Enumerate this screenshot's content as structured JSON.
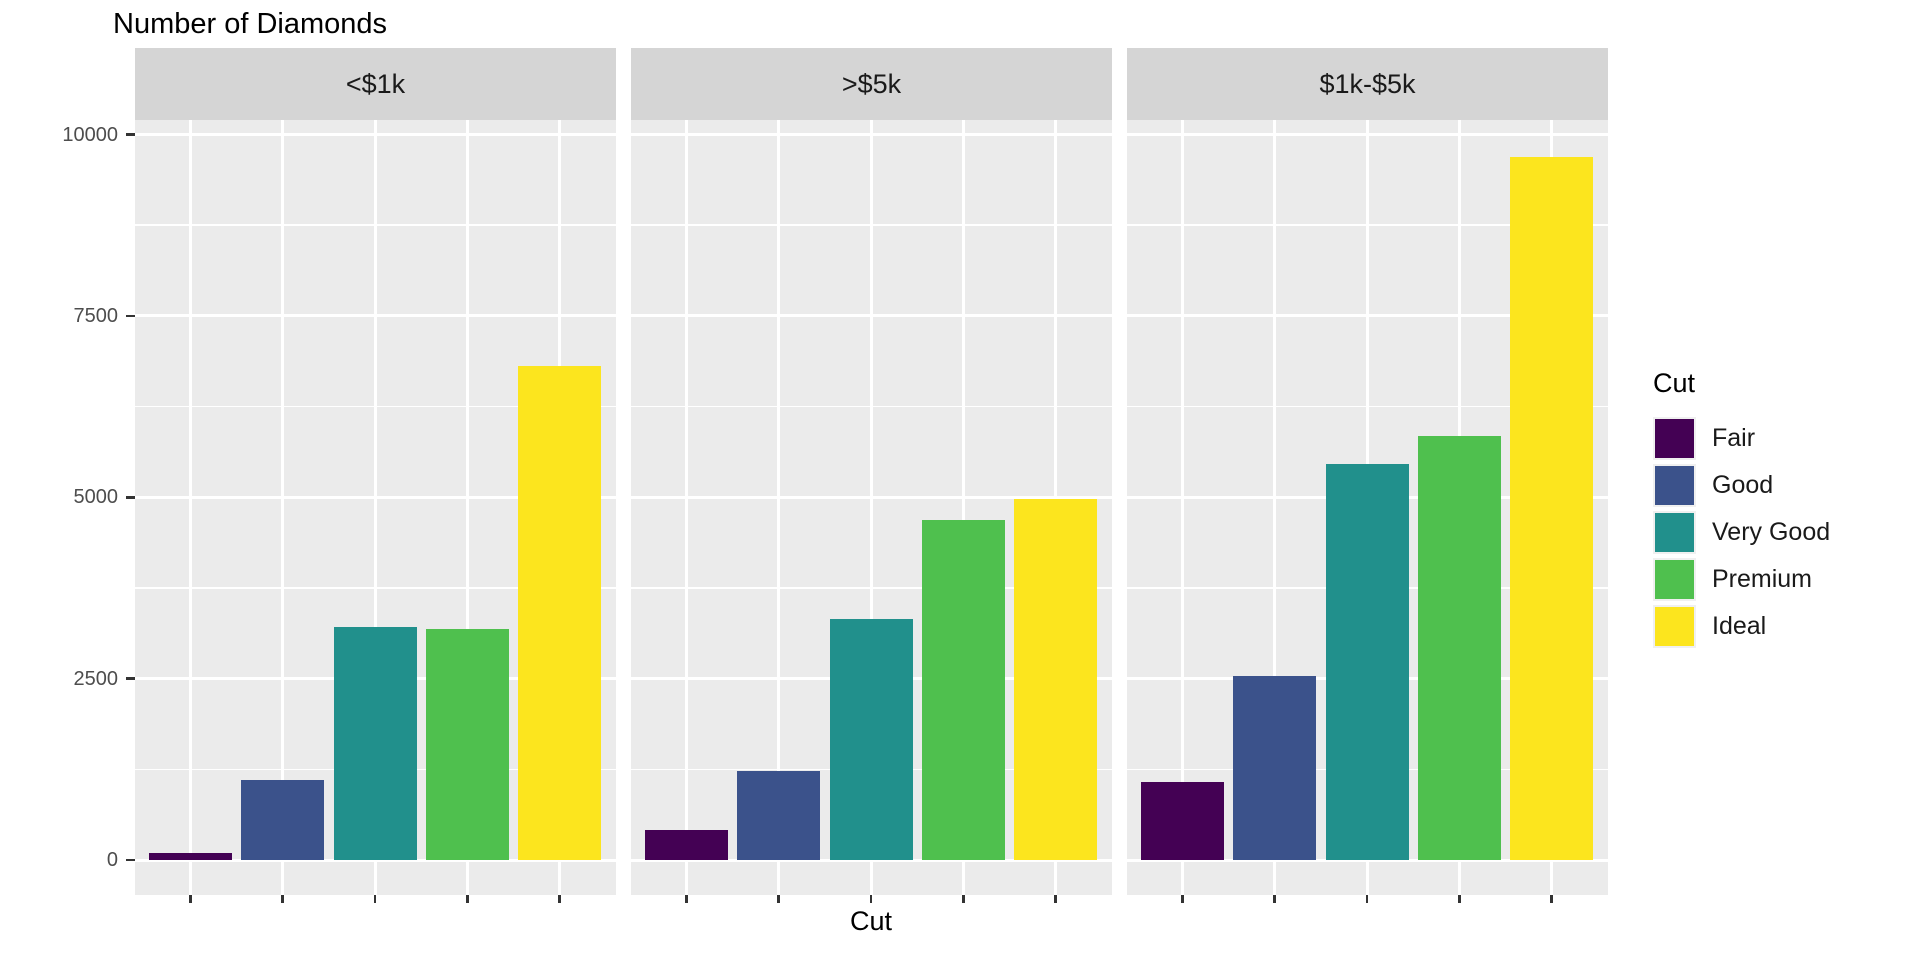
{
  "title": "Number of Diamonds",
  "chart_data": {
    "type": "bar",
    "faceted": true,
    "facet_labels": [
      "<$1k",
      ">$5k",
      "$1k-$5k"
    ],
    "categories": [
      "Fair",
      "Good",
      "Very Good",
      "Premium",
      "Ideal"
    ],
    "series": [
      {
        "facet": "<$1k",
        "values": [
          100,
          1100,
          3210,
          3180,
          6810
        ]
      },
      {
        "facet": ">$5k",
        "values": [
          410,
          1230,
          3320,
          4690,
          4970
        ]
      },
      {
        "facet": "$1k-$5k",
        "values": [
          1070,
          2530,
          5460,
          5850,
          9690
        ]
      }
    ],
    "xlabel": "Cut",
    "ylabel": "",
    "y_ticks": [
      0,
      2500,
      5000,
      7500,
      10000
    ],
    "y_minor_ticks": [
      1250,
      3750,
      6250,
      8750
    ],
    "ylim": [
      -490,
      10240
    ],
    "x_tick_labels_visible": false,
    "grid": true,
    "legend_position": "right",
    "legend_title": "Cut",
    "palette": [
      "#440154",
      "#3B528B",
      "#21908C",
      "#4FC04E",
      "#FCE51E"
    ]
  },
  "legend": {
    "title": "Cut",
    "items": [
      {
        "label": "Fair",
        "color": "#440154"
      },
      {
        "label": "Good",
        "color": "#3B528B"
      },
      {
        "label": "Very Good",
        "color": "#21908C"
      },
      {
        "label": "Premium",
        "color": "#4FC04E"
      },
      {
        "label": "Ideal",
        "color": "#FCE51E"
      }
    ]
  },
  "colors": {
    "page_bg": "#FFFFFF",
    "panel_bg": "#EBEBEB",
    "strip_bg": "#D5D5D5",
    "grid": "#FFFFFF",
    "tick": "#333333",
    "tick_label": "#4D4D4D",
    "text": "#000000"
  }
}
